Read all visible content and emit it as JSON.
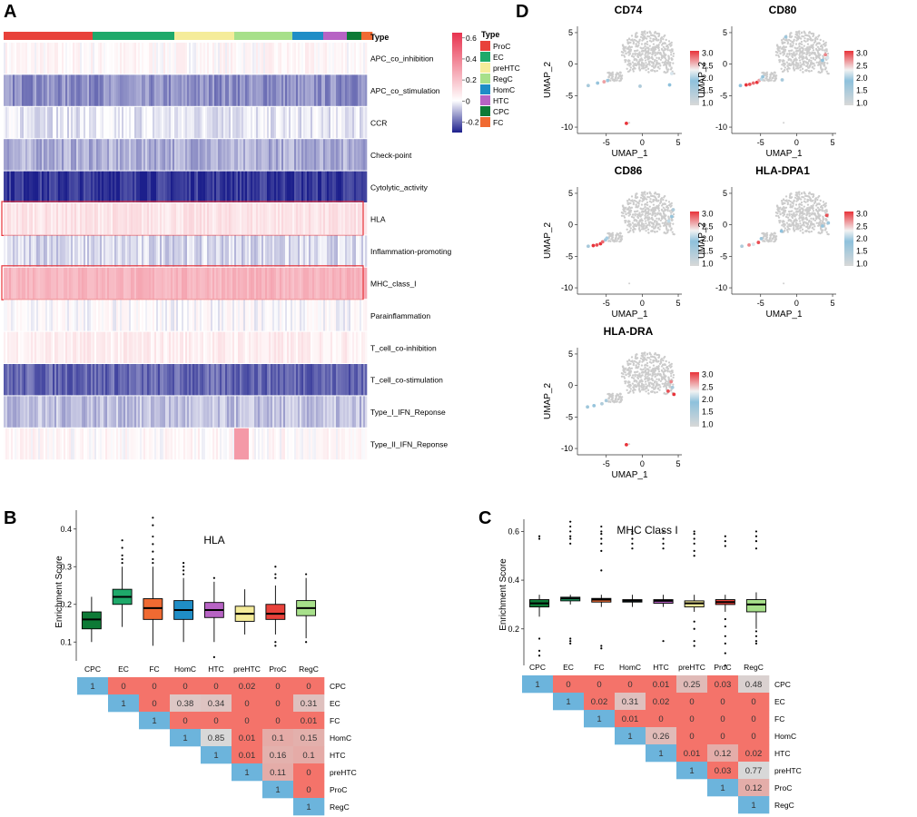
{
  "panel_labels": [
    "A",
    "B",
    "C",
    "D"
  ],
  "colors": {
    "heat_low": "#1c1f8c",
    "heat_mid": "#ffffff",
    "heat_high": "#e8334f",
    "tri_sig": "#f4736a",
    "tri_ns": "#d8d8d8",
    "tri_diag": "#6cb4dc",
    "umap_grey": "#cccccc",
    "umap_low": "#d8d8d8",
    "umap_midlo": "#8ec1dc",
    "umap_mid": "#f2f2f2",
    "umap_high": "#e8333a"
  },
  "chart_data": [
    {
      "type": "heatmap",
      "panel": "A",
      "annotation_label": "Type",
      "rows": [
        "APC_co_inhibition",
        "APC_co_stimulation",
        "CCR",
        "Check-point",
        "Cytolytic_activity",
        "HLA",
        "Inflammation-promoting",
        "MHC_class_I",
        "Parainflammation",
        "T_cell_co-inhibition",
        "T_cell_co-stimulation",
        "Type_I_IFN_Reponse",
        "Type_II_IFN_Reponse"
      ],
      "row_mean": [
        0.02,
        -0.14,
        -0.03,
        -0.1,
        -0.25,
        0.08,
        -0.05,
        0.22,
        0.0,
        0.05,
        -0.19,
        -0.08,
        0.02
      ],
      "highlighted_rows": [
        "HLA",
        "MHC_class_I"
      ],
      "type_groups": [
        {
          "name": "ProC",
          "color": "#e8413a",
          "fraction": 0.245
        },
        {
          "name": "EC",
          "color": "#1ea96a",
          "fraction": 0.225
        },
        {
          "name": "preHTC",
          "color": "#f5ec9a",
          "fraction": 0.165
        },
        {
          "name": "RegC",
          "color": "#a7e08a",
          "fraction": 0.16
        },
        {
          "name": "HomC",
          "color": "#1f8dc6",
          "fraction": 0.085
        },
        {
          "name": "HTC",
          "color": "#b763c4",
          "fraction": 0.065
        },
        {
          "name": "CPC",
          "color": "#0d7a36",
          "fraction": 0.04
        },
        {
          "name": "FC",
          "color": "#f06a32",
          "fraction": 0.03
        }
      ],
      "legend": {
        "title": "Type",
        "items": [
          "ProC",
          "EC",
          "preHTC",
          "RegC",
          "HomC",
          "HTC",
          "CPC",
          "FC"
        ]
      },
      "colorbar": {
        "ticks": [
          "0.6",
          "0.4",
          "0.2",
          "0",
          "-0.2"
        ],
        "tick_values": [
          0.6,
          0.4,
          0.2,
          0,
          -0.2
        ],
        "range": [
          -0.3,
          0.65
        ]
      }
    },
    {
      "type": "box",
      "panel": "B",
      "title": "HLA",
      "ylabel": "Enrichment Score",
      "ylim": [
        0.05,
        0.45
      ],
      "yticks": [
        0.1,
        0.2,
        0.3,
        0.4
      ],
      "ytick_labels": [
        "0.1",
        "0.2",
        "0.3",
        "0.4"
      ],
      "categories": [
        "CPC",
        "EC",
        "FC",
        "HomC",
        "HTC",
        "preHTC",
        "ProC",
        "RegC"
      ],
      "colors": [
        "#0d7a36",
        "#1ea96a",
        "#f06a32",
        "#1f8dc6",
        "#b763c4",
        "#f5ec9a",
        "#e8413a",
        "#a7e08a"
      ],
      "boxes": [
        {
          "min": 0.1,
          "q1": 0.135,
          "median": 0.16,
          "q3": 0.18,
          "max": 0.22,
          "outliers": []
        },
        {
          "min": 0.14,
          "q1": 0.2,
          "median": 0.22,
          "q3": 0.24,
          "max": 0.3,
          "outliers": [
            0.31,
            0.32,
            0.33,
            0.35,
            0.37
          ]
        },
        {
          "min": 0.09,
          "q1": 0.16,
          "median": 0.19,
          "q3": 0.215,
          "max": 0.3,
          "outliers": [
            0.31,
            0.32,
            0.34,
            0.36,
            0.38,
            0.41,
            0.43
          ]
        },
        {
          "min": 0.1,
          "q1": 0.16,
          "median": 0.185,
          "q3": 0.21,
          "max": 0.27,
          "outliers": [
            0.28,
            0.29,
            0.3,
            0.31
          ]
        },
        {
          "min": 0.1,
          "q1": 0.165,
          "median": 0.185,
          "q3": 0.205,
          "max": 0.26,
          "outliers": [
            0.06,
            0.27
          ]
        },
        {
          "min": 0.12,
          "q1": 0.155,
          "median": 0.175,
          "q3": 0.195,
          "max": 0.24,
          "outliers": []
        },
        {
          "min": 0.12,
          "q1": 0.16,
          "median": 0.175,
          "q3": 0.2,
          "max": 0.25,
          "outliers": [
            0.09,
            0.1,
            0.27,
            0.28,
            0.3
          ]
        },
        {
          "min": 0.11,
          "q1": 0.17,
          "median": 0.19,
          "q3": 0.21,
          "max": 0.27,
          "outliers": [
            0.1,
            0.28
          ]
        }
      ]
    },
    {
      "type": "table",
      "panel": "B",
      "labels": [
        "CPC",
        "EC",
        "FC",
        "HomC",
        "HTC",
        "preHTC",
        "ProC",
        "RegC"
      ],
      "matrix": [
        [
          "1",
          "0",
          "0",
          "0",
          "0",
          "0.02",
          "0",
          "0"
        ],
        [
          "",
          "1",
          "0",
          "0.38",
          "0.34",
          "0",
          "0",
          "0.31"
        ],
        [
          "",
          "",
          "1",
          "0",
          "0",
          "0",
          "0",
          "0.01"
        ],
        [
          "",
          "",
          "",
          "1",
          "0.85",
          "0.01",
          "0.1",
          "0.15"
        ],
        [
          "",
          "",
          "",
          "",
          "1",
          "0.01",
          "0.16",
          "0.1"
        ],
        [
          "",
          "",
          "",
          "",
          "",
          "1",
          "0.11",
          "0"
        ],
        [
          "",
          "",
          "",
          "",
          "",
          "",
          "1",
          "0"
        ],
        [
          "",
          "",
          "",
          "",
          "",
          "",
          "",
          "1"
        ]
      ]
    },
    {
      "type": "box",
      "panel": "C",
      "title": "MHC Class I",
      "ylabel": "Enrichment Score",
      "ylim": [
        0.05,
        0.65
      ],
      "yticks": [
        0.2,
        0.4,
        0.6
      ],
      "ytick_labels": [
        "0.2",
        "0.4",
        "0.6"
      ],
      "categories": [
        "CPC",
        "EC",
        "FC",
        "HomC",
        "HTC",
        "preHTC",
        "ProC",
        "RegC"
      ],
      "colors": [
        "#0d7a36",
        "#1ea96a",
        "#f06a32",
        "#1f8dc6",
        "#b763c4",
        "#f5ec9a",
        "#e8413a",
        "#a7e08a"
      ],
      "boxes": [
        {
          "min": 0.25,
          "q1": 0.29,
          "median": 0.305,
          "q3": 0.32,
          "max": 0.34,
          "outliers": [
            0.09,
            0.11,
            0.16,
            0.57,
            0.58
          ]
        },
        {
          "min": 0.3,
          "q1": 0.315,
          "median": 0.325,
          "q3": 0.33,
          "max": 0.34,
          "outliers": [
            0.14,
            0.15,
            0.16,
            0.55,
            0.57,
            0.58,
            0.6,
            0.62,
            0.64
          ]
        },
        {
          "min": 0.29,
          "q1": 0.31,
          "median": 0.32,
          "q3": 0.325,
          "max": 0.34,
          "outliers": [
            0.12,
            0.13,
            0.44,
            0.52,
            0.55,
            0.57,
            0.59,
            0.6,
            0.62
          ]
        },
        {
          "min": 0.29,
          "q1": 0.31,
          "median": 0.315,
          "q3": 0.32,
          "max": 0.34,
          "outliers": [
            0.53,
            0.55,
            0.57,
            0.59,
            0.6
          ]
        },
        {
          "min": 0.29,
          "q1": 0.305,
          "median": 0.315,
          "q3": 0.32,
          "max": 0.34,
          "outliers": [
            0.15,
            0.53,
            0.55,
            0.57,
            0.6
          ]
        },
        {
          "min": 0.27,
          "q1": 0.29,
          "median": 0.305,
          "q3": 0.315,
          "max": 0.34,
          "outliers": [
            0.13,
            0.15,
            0.2,
            0.23,
            0.5,
            0.52,
            0.55,
            0.57,
            0.59,
            0.6
          ]
        },
        {
          "min": 0.27,
          "q1": 0.3,
          "median": 0.31,
          "q3": 0.32,
          "max": 0.34,
          "outliers": [
            0.05,
            0.1,
            0.14,
            0.17,
            0.21,
            0.24,
            0.54,
            0.56,
            0.58
          ]
        },
        {
          "min": 0.2,
          "q1": 0.27,
          "median": 0.3,
          "q3": 0.32,
          "max": 0.35,
          "outliers": [
            0.14,
            0.15,
            0.17,
            0.19,
            0.53,
            0.56,
            0.58,
            0.6
          ]
        }
      ]
    },
    {
      "type": "table",
      "panel": "C",
      "labels": [
        "CPC",
        "EC",
        "FC",
        "HomC",
        "HTC",
        "preHTC",
        "ProC",
        "RegC"
      ],
      "matrix": [
        [
          "1",
          "0",
          "0",
          "0",
          "0.01",
          "0.25",
          "0.03",
          "0.48"
        ],
        [
          "",
          "1",
          "0.02",
          "0.31",
          "0.02",
          "0",
          "0",
          "0"
        ],
        [
          "",
          "",
          "1",
          "0.01",
          "0",
          "0",
          "0",
          "0"
        ],
        [
          "",
          "",
          "",
          "1",
          "0.26",
          "0",
          "0",
          "0"
        ],
        [
          "",
          "",
          "",
          "",
          "1",
          "0.01",
          "0.12",
          "0.02"
        ],
        [
          "",
          "",
          "",
          "",
          "",
          "1",
          "0.03",
          "0.77"
        ],
        [
          "",
          "",
          "",
          "",
          "",
          "",
          "1",
          "0.12"
        ],
        [
          "",
          "",
          "",
          "",
          "",
          "",
          "",
          "1"
        ]
      ]
    },
    {
      "type": "scatter",
      "panel": "D",
      "xlabel": "UMAP_1",
      "ylabel": "UMAP_2",
      "xlim": [
        -9,
        5.5
      ],
      "ylim": [
        -11,
        6
      ],
      "xticks": [
        -5,
        0,
        5
      ],
      "xtick_labels": [
        "-5",
        "0",
        "5"
      ],
      "yticks": [
        5,
        0,
        -5,
        -10
      ],
      "ytick_labels": [
        "5",
        "0",
        "-5",
        "-10"
      ],
      "colorbar_ticks": [
        "3.0",
        "2.5",
        "2.0",
        "1.5",
        "1.0"
      ],
      "colorbar_tick_values": [
        3.0,
        2.5,
        2.0,
        1.5,
        1.0
      ],
      "colorbar_range": [
        0.9,
        3.1
      ],
      "plots": [
        {
          "gene": "CD74",
          "points": [
            [
              -7.5,
              -3.4,
              1.6
            ],
            [
              -6.2,
              -3.0,
              1.8
            ],
            [
              -5.3,
              -2.8,
              2.6
            ],
            [
              -4.8,
              -2.6,
              1.7
            ],
            [
              -2.2,
              -9.4,
              3.0
            ],
            [
              -0.3,
              -3.5,
              1.5
            ],
            [
              3.8,
              -3.3,
              1.9
            ],
            [
              4.1,
              -1.5,
              2.2
            ]
          ]
        },
        {
          "gene": "CD80",
          "points": [
            [
              -7.8,
              -3.4,
              1.9
            ],
            [
              -7.0,
              -3.3,
              3.0
            ],
            [
              -6.5,
              -3.2,
              2.9
            ],
            [
              -6.0,
              -3.0,
              2.8
            ],
            [
              -5.5,
              -2.9,
              3.0
            ],
            [
              -5.2,
              -2.6,
              2.6
            ],
            [
              -4.9,
              -2.4,
              2.1
            ],
            [
              -4.7,
              -2.0,
              1.8
            ],
            [
              -2.0,
              -2.5,
              1.6
            ],
            [
              -1.5,
              4.3,
              1.7
            ],
            [
              3.6,
              0.6,
              1.9
            ],
            [
              4.0,
              1.5,
              2.7
            ],
            [
              4.3,
              1.0,
              2.2
            ]
          ]
        },
        {
          "gene": "CD86",
          "points": [
            [
              -7.5,
              -3.4,
              1.6
            ],
            [
              -6.8,
              -3.3,
              3.0
            ],
            [
              -6.3,
              -3.2,
              2.9
            ],
            [
              -5.8,
              -3.0,
              3.0
            ],
            [
              -5.5,
              -2.7,
              2.8
            ],
            [
              -5.1,
              -2.4,
              1.7
            ],
            [
              -4.9,
              -2.1,
              2.0
            ],
            [
              3.7,
              0.6,
              2.1
            ],
            [
              4.1,
              1.3,
              1.8
            ],
            [
              4.3,
              2.4,
              1.5
            ]
          ]
        },
        {
          "gene": "HLA-DPA1",
          "points": [
            [
              -7.6,
              -3.4,
              1.5
            ],
            [
              -6.6,
              -3.2,
              2.7
            ],
            [
              -6.0,
              -3.1,
              2.2
            ],
            [
              -5.3,
              -2.8,
              2.9
            ],
            [
              -4.9,
              -2.2,
              1.7
            ],
            [
              -2.1,
              -1.0,
              1.9
            ],
            [
              3.6,
              -0.2,
              1.8
            ],
            [
              4.2,
              1.5,
              2.9
            ],
            [
              4.4,
              0.3,
              1.7
            ]
          ]
        },
        {
          "gene": "HLA-DRA",
          "points": [
            [
              -7.6,
              -3.4,
              1.7
            ],
            [
              -6.7,
              -3.2,
              1.8
            ],
            [
              -5.6,
              -2.9,
              1.5
            ],
            [
              -5.0,
              -2.4,
              1.6
            ],
            [
              -2.2,
              -9.4,
              3.0
            ],
            [
              3.6,
              -0.9,
              2.9
            ],
            [
              4.0,
              0.6,
              2.7
            ],
            [
              4.2,
              -0.3,
              1.6
            ],
            [
              4.4,
              -1.4,
              3.0
            ]
          ]
        }
      ]
    }
  ]
}
